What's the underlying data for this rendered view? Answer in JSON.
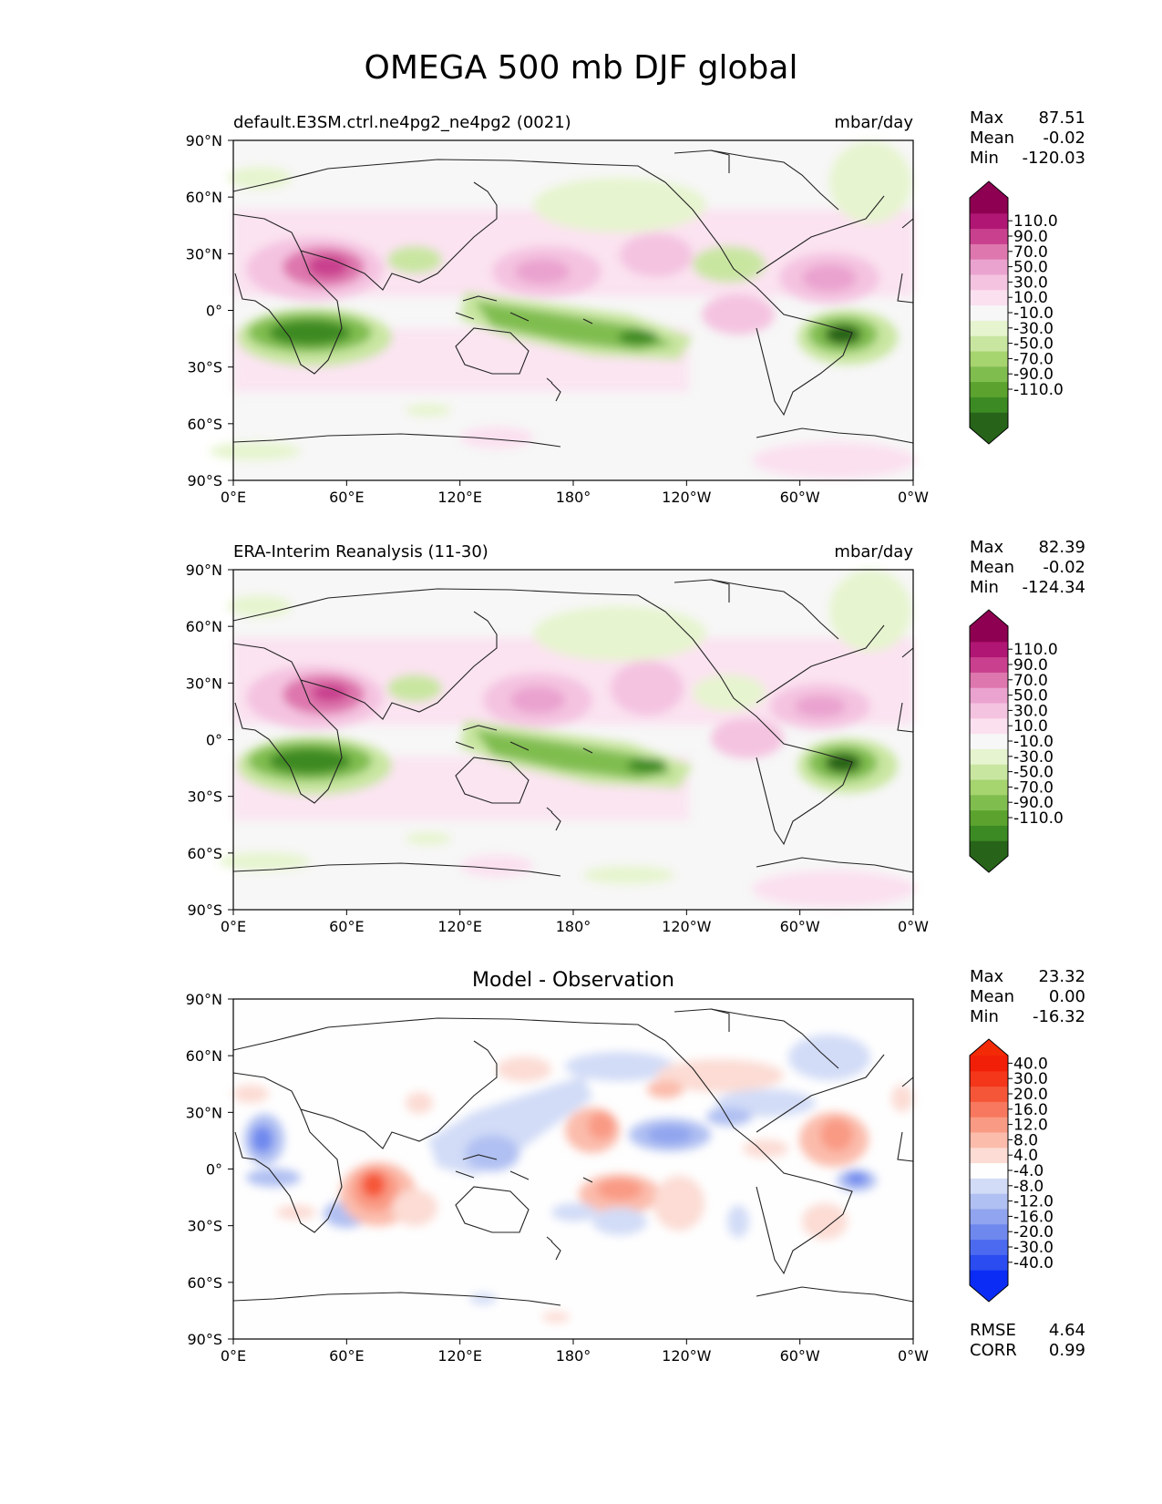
{
  "figure": {
    "title": "OMEGA 500 mb DJF global"
  },
  "axes": {
    "lat_ticks": [
      "90°N",
      "60°N",
      "30°N",
      "0°",
      "30°S",
      "60°S",
      "90°S"
    ],
    "lon_ticks": [
      "0°E",
      "60°E",
      "120°E",
      "180°",
      "120°W",
      "60°W",
      "0°W"
    ]
  },
  "panels": [
    {
      "id": "model",
      "left_title": "default.E3SM.ctrl.ne4pg2_ne4pg2 (0021)",
      "center_title": "",
      "units": "mbar/day",
      "stats": [
        {
          "label": "Max",
          "value": "87.51"
        },
        {
          "label": "Mean",
          "value": "-0.02"
        },
        {
          "label": "Min",
          "value": "-120.03"
        }
      ],
      "colorbar": {
        "ticks": [
          "110.0",
          "90.0",
          "70.0",
          "50.0",
          "30.0",
          "10.0",
          "-10.0",
          "-30.0",
          "-50.0",
          "-70.0",
          "-90.0",
          "-110.0"
        ],
        "colors": [
          "#276419",
          "#3c8a23",
          "#5ba32e",
          "#80bd4f",
          "#a6d46f",
          "#c9e6a1",
          "#e6f4cf",
          "#f7f7f7",
          "#fbe0ef",
          "#f4c3e0",
          "#eaa3cf",
          "#de77ae",
          "#c9408e",
          "#b01674",
          "#8e0152"
        ],
        "max_color": "#8e0152",
        "min_color": "#276419"
      },
      "footer_stats": []
    },
    {
      "id": "obs",
      "left_title": "ERA-Interim Reanalysis (11-30)",
      "center_title": "",
      "units": "mbar/day",
      "stats": [
        {
          "label": "Max",
          "value": "82.39"
        },
        {
          "label": "Mean",
          "value": "-0.02"
        },
        {
          "label": "Min",
          "value": "-124.34"
        }
      ],
      "colorbar": {
        "ticks": [
          "110.0",
          "90.0",
          "70.0",
          "50.0",
          "30.0",
          "10.0",
          "-10.0",
          "-30.0",
          "-50.0",
          "-70.0",
          "-90.0",
          "-110.0"
        ],
        "colors": [
          "#276419",
          "#3c8a23",
          "#5ba32e",
          "#80bd4f",
          "#a6d46f",
          "#c9e6a1",
          "#e6f4cf",
          "#f7f7f7",
          "#fbe0ef",
          "#f4c3e0",
          "#eaa3cf",
          "#de77ae",
          "#c9408e",
          "#b01674",
          "#8e0152"
        ],
        "max_color": "#8e0152",
        "min_color": "#276419"
      },
      "footer_stats": []
    },
    {
      "id": "diff",
      "left_title": "",
      "center_title": "Model - Observation",
      "units": "",
      "stats": [
        {
          "label": "Max",
          "value": "23.32"
        },
        {
          "label": "Mean",
          "value": "0.00"
        },
        {
          "label": "Min",
          "value": "-16.32"
        }
      ],
      "colorbar": {
        "ticks": [
          "40.0",
          "30.0",
          "20.0",
          "16.0",
          "12.0",
          "8.0",
          "4.0",
          "-4.0",
          "-8.0",
          "-12.0",
          "-16.0",
          "-20.0",
          "-30.0",
          "-40.0"
        ],
        "colors": [
          "#0a2cf5",
          "#2a4cf0",
          "#4c6af0",
          "#6e88ee",
          "#90a4ef",
          "#b0c0f2",
          "#d2dcf7",
          "#fefefe",
          "#fcdcd4",
          "#fbbcac",
          "#f99a84",
          "#f7785e",
          "#f65638",
          "#f4361b",
          "#f21f08"
        ],
        "max_color": "#f22a06",
        "min_color": "#0a2cf5"
      },
      "footer_stats": [
        {
          "label": "RMSE",
          "value": "4.64"
        },
        {
          "label": "CORR",
          "value": "0.99"
        }
      ]
    }
  ]
}
